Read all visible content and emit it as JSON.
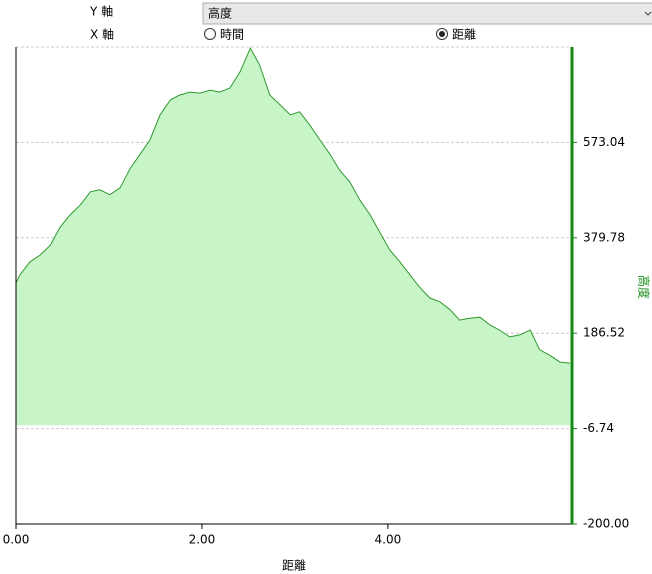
{
  "ui": {
    "y_axis_label": "Y 軸",
    "y_select": "高度",
    "x_axis_label": "X 軸",
    "x_options": [
      {
        "label": "時間",
        "checked": false
      },
      {
        "label": "距離",
        "checked": true
      }
    ]
  },
  "chart_data": {
    "type": "area",
    "x_label": "距離",
    "y_label": "高度",
    "x": [
      0,
      0.04,
      0.15,
      0.26,
      0.37,
      0.47,
      0.58,
      0.69,
      0.8,
      0.9,
      1.01,
      1.12,
      1.23,
      1.33,
      1.44,
      1.55,
      1.66,
      1.76,
      1.87,
      1.98,
      2.09,
      2.19,
      2.3,
      2.41,
      2.52,
      2.62,
      2.73,
      2.84,
      2.95,
      3.05,
      3.16,
      3.27,
      3.38,
      3.48,
      3.59,
      3.7,
      3.81,
      3.91,
      4.02,
      4.13,
      4.24,
      4.34,
      4.45,
      4.56,
      4.67,
      4.77,
      4.88,
      4.99,
      5.1,
      5.2,
      5.31,
      5.42,
      5.53,
      5.63,
      5.74,
      5.85,
      5.96
    ],
    "values": [
      288,
      304,
      331,
      345,
      365,
      400,
      426,
      446,
      473,
      477,
      467,
      481,
      521,
      548,
      578,
      629,
      659,
      669,
      675,
      673,
      679,
      675,
      683,
      716,
      764,
      730,
      669,
      649,
      629,
      635,
      608,
      578,
      548,
      517,
      493,
      456,
      426,
      392,
      355,
      331,
      304,
      280,
      258,
      250,
      234,
      213,
      217,
      219,
      203,
      193,
      179,
      183,
      193,
      153,
      142,
      128,
      126
    ],
    "color": "#2e9a2e",
    "fill": "#c8f5c8",
    "axis_color": "#138a13",
    "xlim": [
      0,
      5.98
    ],
    "ylim": [
      -200,
      766.3
    ],
    "xticks": [
      {
        "value": 0,
        "label": "0.00"
      },
      {
        "value": 2,
        "label": "2.00"
      },
      {
        "value": 4,
        "label": "4.00"
      }
    ],
    "yticks": [
      {
        "value": -200,
        "label": "-200.00"
      },
      -6.74,
      186.52,
      379.78,
      573.04
    ],
    "grid": true
  }
}
